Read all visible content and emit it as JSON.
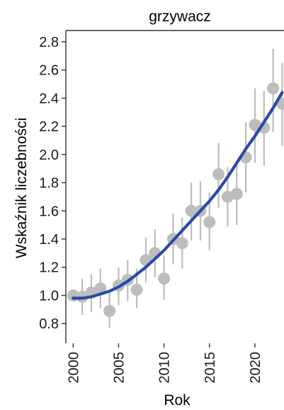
{
  "chart_data": {
    "type": "scatter",
    "title": "grzywacz",
    "xlabel": "Rok",
    "ylabel": "Wskaźnik liczebności",
    "xlim": [
      1999.2,
      2023.2
    ],
    "ylim": [
      0.66,
      2.88
    ],
    "x_ticks": [
      2000,
      2005,
      2010,
      2015,
      2020
    ],
    "x_tick_labels": [
      "2000",
      "2005",
      "2010",
      "2015",
      "2020"
    ],
    "y_ticks": [
      0.8,
      1.0,
      1.2,
      1.4,
      1.6,
      1.8,
      2.0,
      2.2,
      2.4,
      2.6,
      2.8
    ],
    "y_tick_labels": [
      "0.8",
      "1.0",
      "1.2",
      "1.4",
      "1.6",
      "1.8",
      "2.0",
      "2.2",
      "2.4",
      "2.6",
      "2.8"
    ],
    "grid": false,
    "point_color": "#bdbdbd",
    "errorbar_color": "#bdbdbd",
    "trend_color": "#2a4aa8",
    "points": [
      {
        "x": 2000,
        "y": 1.0,
        "lo": 0.96,
        "hi": 1.04
      },
      {
        "x": 2001,
        "y": 0.99,
        "lo": 0.86,
        "hi": 1.12
      },
      {
        "x": 2002,
        "y": 1.02,
        "lo": 0.88,
        "hi": 1.15
      },
      {
        "x": 2003,
        "y": 1.05,
        "lo": 0.91,
        "hi": 1.19
      },
      {
        "x": 2004,
        "y": 0.89,
        "lo": 0.77,
        "hi": 1.03
      },
      {
        "x": 2005,
        "y": 1.07,
        "lo": 0.93,
        "hi": 1.2
      },
      {
        "x": 2006,
        "y": 1.11,
        "lo": 0.96,
        "hi": 1.25
      },
      {
        "x": 2007,
        "y": 1.04,
        "lo": 0.91,
        "hi": 1.19
      },
      {
        "x": 2008,
        "y": 1.25,
        "lo": 1.09,
        "hi": 1.41
      },
      {
        "x": 2009,
        "y": 1.3,
        "lo": 1.13,
        "hi": 1.47
      },
      {
        "x": 2010,
        "y": 1.12,
        "lo": 0.97,
        "hi": 1.28
      },
      {
        "x": 2011,
        "y": 1.4,
        "lo": 1.22,
        "hi": 1.58
      },
      {
        "x": 2012,
        "y": 1.37,
        "lo": 1.19,
        "hi": 1.55
      },
      {
        "x": 2013,
        "y": 1.6,
        "lo": 1.39,
        "hi": 1.8
      },
      {
        "x": 2014,
        "y": 1.6,
        "lo": 1.39,
        "hi": 1.81
      },
      {
        "x": 2015,
        "y": 1.52,
        "lo": 1.32,
        "hi": 1.73
      },
      {
        "x": 2016,
        "y": 1.86,
        "lo": 1.62,
        "hi": 2.08
      },
      {
        "x": 2017,
        "y": 1.7,
        "lo": 1.49,
        "hi": 1.91
      },
      {
        "x": 2018,
        "y": 1.72,
        "lo": 1.5,
        "hi": 1.94
      },
      {
        "x": 2019,
        "y": 1.98,
        "lo": 1.73,
        "hi": 2.23
      },
      {
        "x": 2020,
        "y": 2.21,
        "lo": 1.94,
        "hi": 2.47
      },
      {
        "x": 2021,
        "y": 2.19,
        "lo": 1.92,
        "hi": 2.45
      },
      {
        "x": 2022,
        "y": 2.47,
        "lo": 2.16,
        "hi": 2.75
      },
      {
        "x": 2023,
        "y": 2.36,
        "lo": 2.06,
        "hi": 2.65
      }
    ],
    "trend": {
      "x": [
        2000,
        2001,
        2002,
        2003,
        2004,
        2005,
        2006,
        2007,
        2008,
        2009,
        2010,
        2011,
        2012,
        2013,
        2014,
        2015,
        2016,
        2017,
        2018,
        2019,
        2020,
        2021,
        2022,
        2023
      ],
      "y": [
        0.98,
        0.98,
        0.99,
        1.01,
        1.03,
        1.06,
        1.1,
        1.15,
        1.2,
        1.26,
        1.32,
        1.39,
        1.46,
        1.53,
        1.6,
        1.67,
        1.75,
        1.84,
        1.94,
        2.04,
        2.13,
        2.23,
        2.33,
        2.44
      ]
    }
  }
}
